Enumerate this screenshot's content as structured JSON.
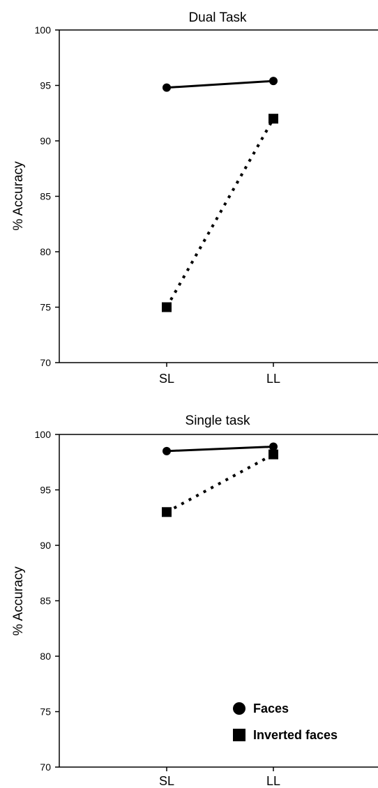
{
  "chart_data": [
    {
      "type": "line",
      "title": "Dual Task",
      "xlabel": "",
      "ylabel": "% Accuracy",
      "categories": [
        "SL",
        "LL"
      ],
      "ylim": [
        70,
        100
      ],
      "yticks": [
        "70",
        "75",
        "80",
        "85",
        "90",
        "95",
        "100"
      ],
      "grid": false,
      "series": [
        {
          "name": "Faces",
          "values": [
            94.8,
            95.4
          ],
          "marker": "circle",
          "line": "solid",
          "color": "#000000"
        },
        {
          "name": "Inverted faces",
          "values": [
            75.0,
            92.0
          ],
          "marker": "square",
          "line": "dotted",
          "color": "#000000"
        }
      ]
    },
    {
      "type": "line",
      "title": "Single task",
      "xlabel": "",
      "ylabel": "% Accuracy",
      "categories": [
        "SL",
        "LL"
      ],
      "ylim": [
        70,
        100
      ],
      "yticks": [
        "70",
        "75",
        "80",
        "85",
        "90",
        "95",
        "100"
      ],
      "grid": false,
      "legend": {
        "placement": "bottom-right",
        "entries": [
          "Faces",
          "Inverted faces"
        ]
      },
      "series": [
        {
          "name": "Faces",
          "values": [
            98.5,
            98.9
          ],
          "marker": "circle",
          "line": "solid",
          "color": "#000000"
        },
        {
          "name": "Inverted faces",
          "values": [
            93.0,
            98.2
          ],
          "marker": "square",
          "line": "dotted",
          "color": "#000000"
        }
      ]
    }
  ]
}
